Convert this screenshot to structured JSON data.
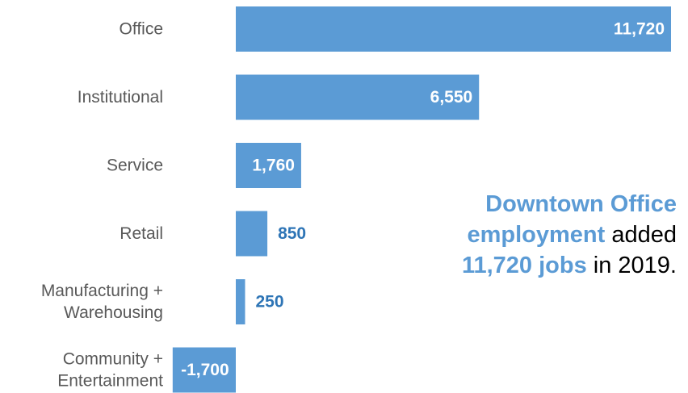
{
  "colors": {
    "bar": "#5b9bd5",
    "label_inside": "#ffffff",
    "label_outside": "#2e75b6",
    "category_text": "#595959",
    "highlight": "#5b9bd5",
    "callout_text": "#000000"
  },
  "chart_data": {
    "type": "bar",
    "orientation": "horizontal",
    "categories": [
      [
        "Office"
      ],
      [
        "Institutional"
      ],
      [
        "Service"
      ],
      [
        "Retail"
      ],
      [
        "Manufacturing +",
        "Warehousing"
      ],
      [
        "Community +",
        "Entertainment"
      ]
    ],
    "values": [
      11720,
      6550,
      1760,
      850,
      250,
      -1700
    ],
    "value_labels": [
      "11,720",
      "6,550",
      "1,760",
      "850",
      "250",
      "-1,700"
    ],
    "label_inside": [
      true,
      true,
      true,
      false,
      false,
      true
    ],
    "title": "",
    "xlabel": "",
    "ylabel": "",
    "xlim": [
      -1700,
      11720
    ],
    "grid": false,
    "legend": "none"
  },
  "callout": {
    "parts": [
      {
        "text": "Downtown Office",
        "highlight": true
      },
      {
        "text": "employment",
        "highlight": true
      },
      {
        "text": " added",
        "highlight": false
      },
      {
        "text": "11,720 jobs",
        "highlight": true
      },
      {
        "text": " in 2019.",
        "highlight": false
      }
    ]
  }
}
